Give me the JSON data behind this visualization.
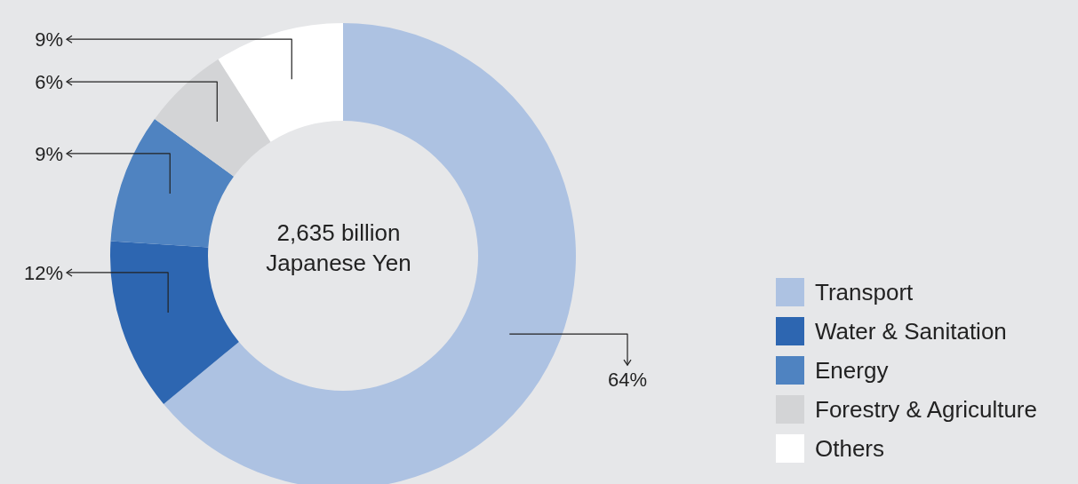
{
  "chart_data": {
    "type": "donut",
    "title": "2,635 billion Japanese Yen",
    "categories": [
      "Transport",
      "Water & Sanitation",
      "Energy",
      "Forestry & Agriculture",
      "Others"
    ],
    "values": [
      64,
      12,
      9,
      6,
      9
    ],
    "value_labels": [
      "64%",
      "12%",
      "9%",
      "6%",
      "9%"
    ],
    "colors": [
      "#adc2e2",
      "#2d66b1",
      "#4f83c1",
      "#d3d4d6",
      "#ffffff"
    ],
    "legend": "bottom right"
  }
}
